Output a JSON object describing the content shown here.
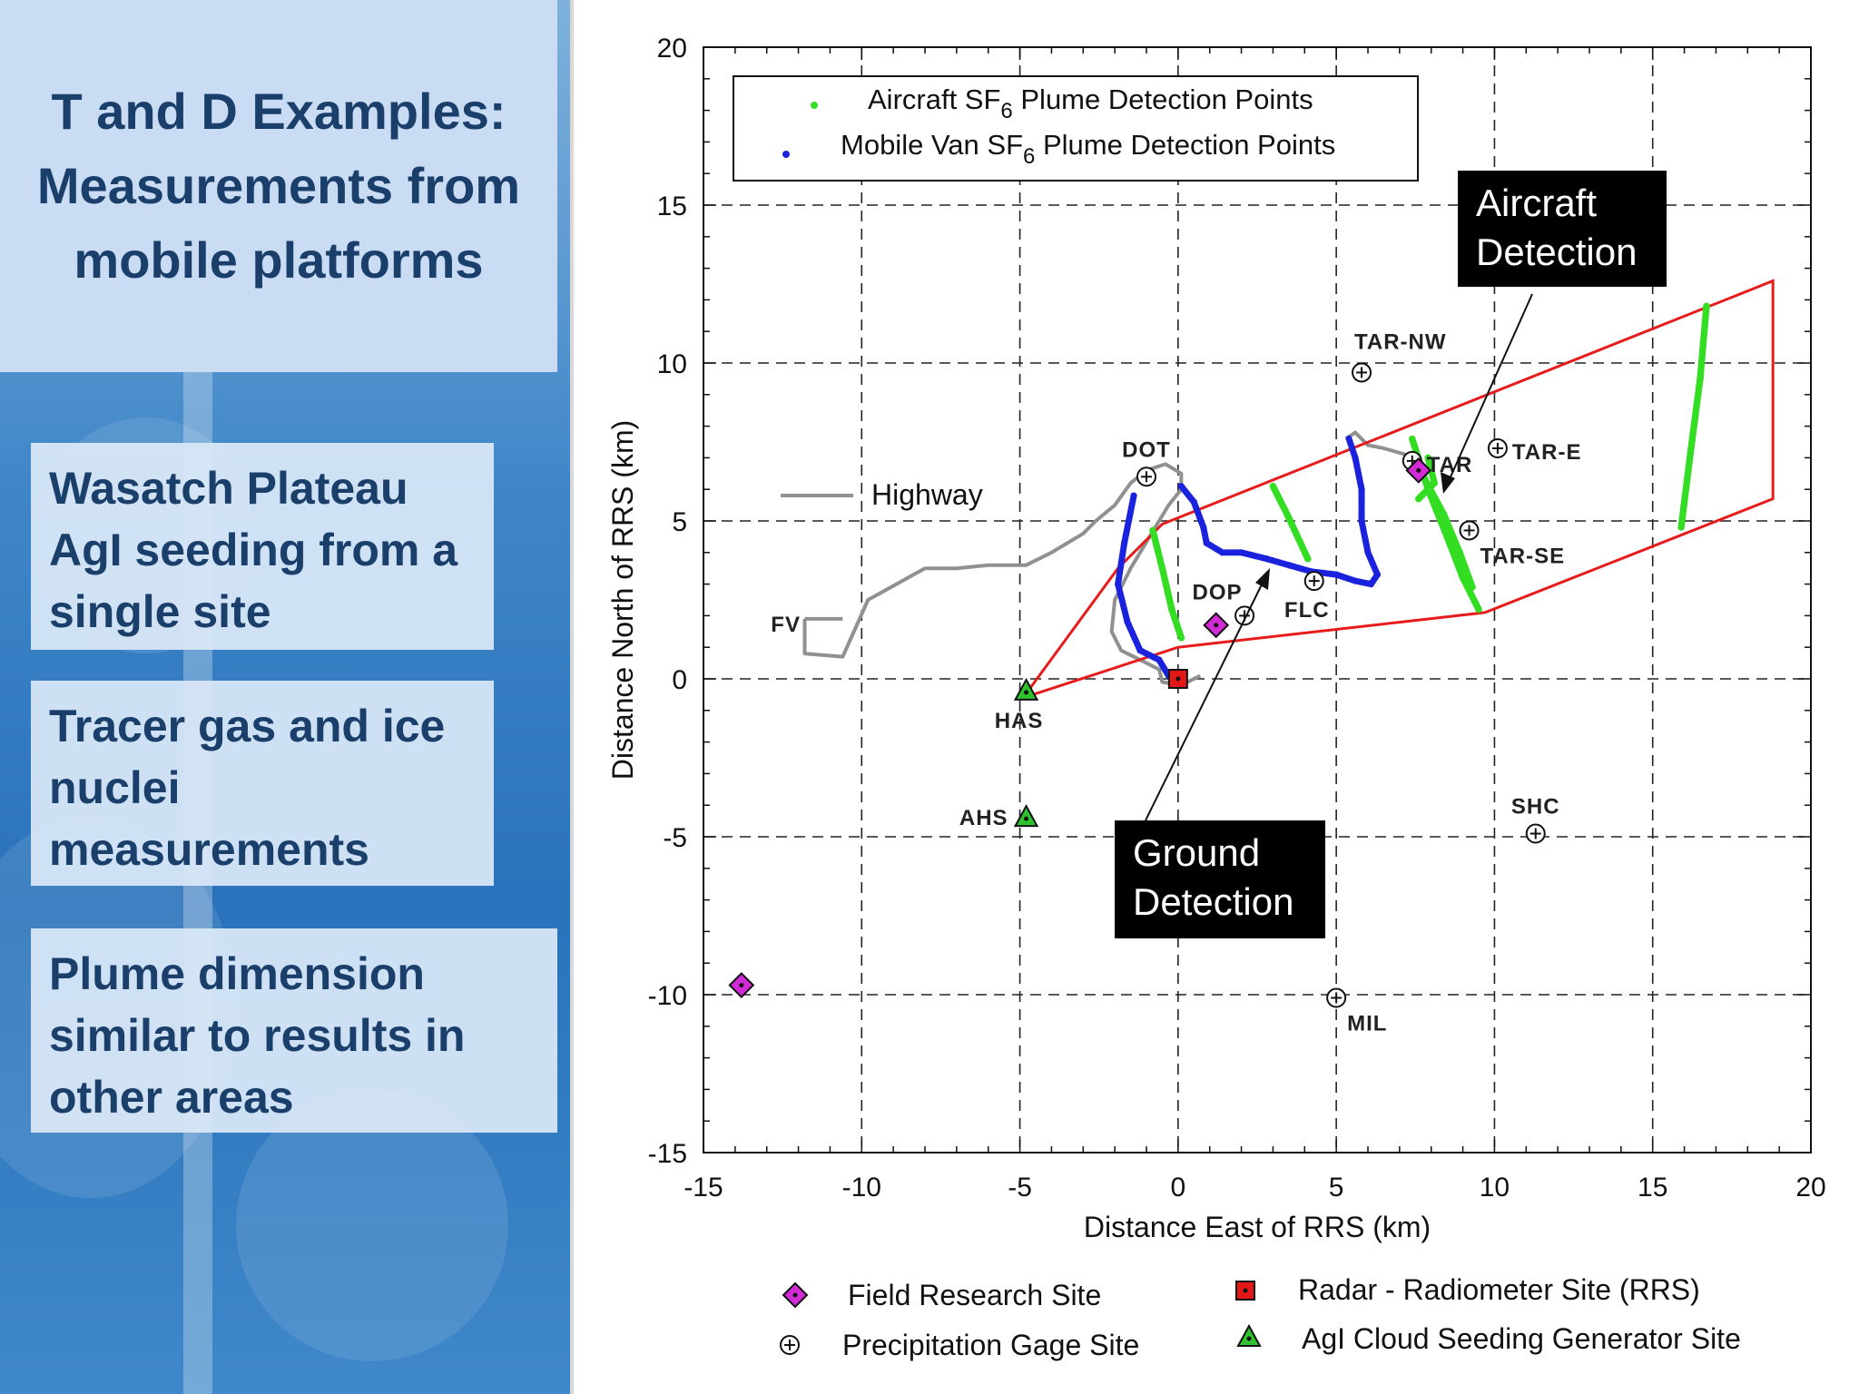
{
  "slide": {
    "title": "T and D Examples: Measurements from mobile platforms",
    "bullets": [
      "Wasatch Plateau AgI seeding from a single site",
      "Tracer gas and ice nuclei measurements",
      "Plume dimension similar to results in other areas"
    ]
  },
  "chart_data": {
    "type": "scatter",
    "xlabel": "Distance East of RRS (km)",
    "ylabel": "Distance North of RRS (km)",
    "xlim": [
      -15,
      20
    ],
    "ylim": [
      -15,
      20
    ],
    "xticks": [
      -15,
      -10,
      -5,
      0,
      5,
      10,
      15,
      20
    ],
    "yticks": [
      -15,
      -10,
      -5,
      0,
      5,
      10,
      15,
      20
    ],
    "grid": true,
    "legend": {
      "placement": "top-left",
      "entries": [
        {
          "label_pre": "Aircraft SF",
          "sub": "6",
          "label_post": " Plume Detection Points",
          "color": "#33dd22"
        },
        {
          "label_pre": "Mobile Van SF",
          "sub": "6",
          "label_post": " Plume Detection Points",
          "color": "#1a22dd"
        }
      ]
    },
    "highway": {
      "label": "Highway",
      "color": "#909090",
      "x": [
        -11.8,
        -11.8,
        -10.6,
        -9.8,
        -8.9,
        -8.0,
        -7.0,
        -6.0,
        -4.8,
        -4.0,
        -3.5,
        -3.0,
        -2.6,
        -2.0,
        -1.5,
        -1.0,
        -0.4,
        0.1,
        0.1,
        -0.3,
        -0.9,
        -1.5,
        -2.0,
        -2.1,
        -1.8,
        -1.0,
        -0.6,
        -0.5,
        0.1,
        0.7
      ],
      "y": [
        1.9,
        0.8,
        0.7,
        2.5,
        3.0,
        3.5,
        3.5,
        3.6,
        3.6,
        4.0,
        4.3,
        4.6,
        5.0,
        5.5,
        6.2,
        6.6,
        6.8,
        6.5,
        6.0,
        5.5,
        4.5,
        3.5,
        2.5,
        1.5,
        0.9,
        0.5,
        0.3,
        -0.1,
        -0.2,
        0.1
      ]
    },
    "highway_branch": {
      "x": [
        -11.8,
        -10.6
      ],
      "y": [
        1.9,
        1.9
      ]
    },
    "highway_east": {
      "x": [
        5.3,
        5.6,
        6.0,
        6.5,
        7.2,
        7.5
      ],
      "y": [
        7.6,
        7.8,
        7.4,
        7.3,
        7.1,
        6.9
      ]
    },
    "plume_boundary": {
      "color": "#e81b1b",
      "polygon": {
        "x": [
          -4.9,
          -1.9,
          -0.5,
          18.8,
          18.8,
          9.7,
          0.0,
          -4.9
        ],
        "y": [
          -0.6,
          3.5,
          4.9,
          12.6,
          5.7,
          2.1,
          1.0,
          -0.6
        ]
      }
    },
    "van_series": {
      "name": "Mobile Van SF6 Plume Detection Points",
      "color": "#1a22dd",
      "segments": [
        {
          "x": [
            -1.4,
            -1.7,
            -1.9,
            -1.6,
            -1.2,
            -0.6,
            -0.3,
            0.0
          ],
          "y": [
            5.8,
            4.3,
            3.0,
            1.8,
            0.9,
            0.6,
            0.1,
            -0.2
          ]
        },
        {
          "x": [
            0.1,
            0.5,
            0.8,
            0.9,
            1.4,
            2.0,
            2.8,
            3.5,
            4.2,
            5.0,
            5.6,
            6.1,
            6.3,
            6.0,
            5.8,
            5.8,
            5.6,
            5.4
          ],
          "y": [
            6.1,
            5.6,
            4.8,
            4.3,
            4.0,
            4.0,
            3.8,
            3.6,
            3.4,
            3.3,
            3.1,
            3.0,
            3.3,
            4.0,
            5.0,
            6.0,
            7.0,
            7.6
          ]
        }
      ]
    },
    "aircraft_series": {
      "name": "Aircraft SF6 Plume Detection Points",
      "color": "#33dd22",
      "segments": [
        {
          "x": [
            -0.8,
            -0.5,
            -0.2,
            0.1
          ],
          "y": [
            4.7,
            3.5,
            2.2,
            1.3
          ]
        },
        {
          "x": [
            3.0,
            3.5,
            4.1
          ],
          "y": [
            6.1,
            5.1,
            3.8
          ]
        },
        {
          "x": [
            7.4,
            7.9,
            8.5,
            9.0,
            9.5
          ],
          "y": [
            7.6,
            6.0,
            4.5,
            3.2,
            2.2
          ]
        },
        {
          "x": [
            7.6,
            8.4,
            8.9,
            9.3
          ],
          "y": [
            6.7,
            5.2,
            4.0,
            2.9
          ]
        },
        {
          "x": [
            7.9,
            8.1,
            7.6
          ],
          "y": [
            7.0,
            6.2,
            5.7
          ]
        },
        {
          "x": [
            16.7,
            16.5,
            16.2,
            15.9
          ],
          "y": [
            11.8,
            9.5,
            7.2,
            4.8
          ]
        }
      ]
    },
    "sites": [
      {
        "label": "DOT",
        "type": "precipitation-gage",
        "x": -1.0,
        "y": 6.4,
        "label_pos": "above"
      },
      {
        "label": "TAR-NW",
        "type": "precipitation-gage",
        "x": 5.8,
        "y": 9.7,
        "label_pos": "above-right"
      },
      {
        "label": "TAR",
        "type": "precipitation-gage",
        "x": 7.4,
        "y": 6.9,
        "label_pos": "right"
      },
      {
        "label": "TAR-E",
        "type": "precipitation-gage",
        "x": 10.1,
        "y": 7.3,
        "label_pos": "right"
      },
      {
        "label": "TAR-SE",
        "type": "precipitation-gage",
        "x": 9.2,
        "y": 4.7,
        "label_pos": "below-right"
      },
      {
        "label": "FLC",
        "type": "precipitation-gage",
        "x": 4.3,
        "y": 3.1,
        "label_pos": "below-left"
      },
      {
        "label": "DOP",
        "type": "precipitation-gage",
        "x": 2.1,
        "y": 2.0,
        "label_pos": "above-left"
      },
      {
        "label": "SHC",
        "type": "precipitation-gage",
        "x": 11.3,
        "y": -4.9,
        "label_pos": "above"
      },
      {
        "label": "MIL",
        "type": "precipitation-gage",
        "x": 5.0,
        "y": -10.1,
        "label_pos": "below-right"
      },
      {
        "label": "",
        "type": "field-research",
        "x": 1.2,
        "y": 1.7
      },
      {
        "label": "",
        "type": "field-research",
        "x": 7.6,
        "y": 6.6
      },
      {
        "label": "",
        "type": "field-research",
        "x": -13.8,
        "y": -9.7
      },
      {
        "label": "",
        "type": "radar-radiometer",
        "x": 0.0,
        "y": 0.0
      },
      {
        "label": "HAS",
        "type": "agi-generator",
        "x": -4.8,
        "y": -0.4,
        "label_pos": "below-left"
      },
      {
        "label": "AHS",
        "type": "agi-generator",
        "x": -4.8,
        "y": -4.4,
        "label_pos": "left"
      },
      {
        "label": "FV",
        "type": "label-only",
        "x": -12.4,
        "y": 1.5,
        "label_pos": "none"
      }
    ],
    "annotations": [
      {
        "lines": [
          "Aircraft",
          "Detection"
        ]
      },
      {
        "lines": [
          "Ground",
          "Detection"
        ]
      }
    ],
    "bottom_legend": [
      {
        "type": "field-research",
        "label": "Field Research Site"
      },
      {
        "type": "precipitation-gage",
        "label": "Precipitation Gage Site"
      },
      {
        "type": "radar-radiometer",
        "label": "Radar - Radiometer Site (RRS)"
      },
      {
        "type": "agi-generator",
        "label": "AgI Cloud Seeding Generator Site"
      }
    ],
    "marker_colors": {
      "field-research": "#d22ad6",
      "radar-radiometer": "#e21818",
      "agi-generator": "#2fc22f"
    }
  }
}
